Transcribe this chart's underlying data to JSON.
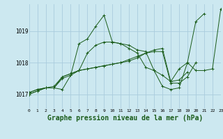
{
  "background_color": "#cce8f0",
  "grid_color": "#aaccdd",
  "line_color": "#1a5c1a",
  "xlabel": "Graphe pression niveau de la mer (hPa)",
  "xlabel_fontsize": 7,
  "ylabel_values": [
    1017,
    1018,
    1019
  ],
  "xmin": 0,
  "xmax": 23,
  "ymin": 1016.55,
  "ymax": 1019.85,
  "series": [
    {
      "x": [
        0,
        1,
        2,
        3,
        4,
        5,
        6,
        7,
        8,
        9,
        10,
        11,
        12,
        13,
        14,
        15,
        16,
        17,
        18,
        19,
        20,
        21,
        22,
        23
      ],
      "y": [
        1017.0,
        1017.1,
        1017.2,
        1017.2,
        1017.5,
        1017.6,
        1018.6,
        1018.75,
        1019.15,
        1019.5,
        1018.65,
        1018.6,
        1018.55,
        1018.4,
        1018.35,
        1017.75,
        1017.25,
        1017.15,
        1017.2,
        1018.0,
        1019.3,
        1019.55,
        null,
        null
      ]
    },
    {
      "x": [
        0,
        1,
        2,
        3,
        4,
        5,
        6,
        7,
        8,
        9,
        10,
        11,
        12,
        13,
        14,
        15,
        16,
        17,
        18,
        19,
        20,
        21,
        22,
        23
      ],
      "y": [
        1017.0,
        1017.1,
        1017.2,
        1017.2,
        1017.15,
        1017.6,
        1017.75,
        1018.3,
        1018.55,
        1018.65,
        1018.65,
        1018.6,
        1018.45,
        1018.3,
        1017.85,
        1017.75,
        1017.6,
        1017.4,
        1017.8,
        1018.0,
        1017.75,
        1017.75,
        1017.8,
        1019.7
      ]
    },
    {
      "x": [
        0,
        1,
        2,
        3,
        4,
        5,
        6,
        7,
        8,
        9,
        10,
        11,
        12,
        13,
        14,
        15,
        16,
        17,
        18,
        19,
        20
      ],
      "y": [
        1017.05,
        1017.15,
        1017.2,
        1017.2,
        1017.55,
        1017.65,
        1017.75,
        1017.8,
        1017.85,
        1017.9,
        1017.95,
        1018.0,
        1018.1,
        1018.2,
        1018.3,
        1018.35,
        1018.35,
        1017.35,
        1017.35,
        1017.55,
        1018.0
      ]
    },
    {
      "x": [
        0,
        1,
        2,
        3,
        4,
        5,
        6,
        7,
        8,
        9,
        10,
        11,
        12,
        13,
        14,
        15,
        16,
        17,
        18,
        19
      ],
      "y": [
        1017.05,
        1017.15,
        1017.2,
        1017.25,
        1017.55,
        1017.65,
        1017.75,
        1017.8,
        1017.85,
        1017.9,
        1017.95,
        1018.0,
        1018.05,
        1018.15,
        1018.3,
        1018.4,
        1018.45,
        1017.4,
        1017.45,
        1017.7
      ]
    }
  ]
}
